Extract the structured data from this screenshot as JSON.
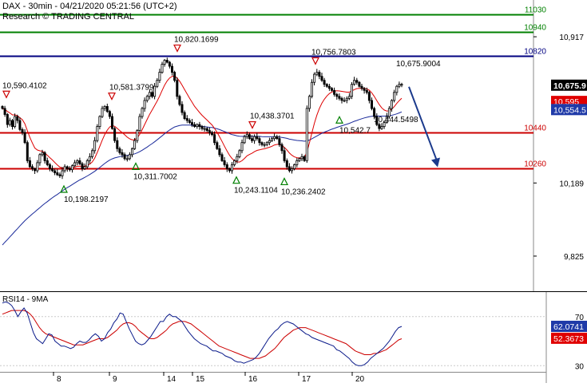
{
  "header": {
    "line1": "DAX - 30min - 04/21/2020 05:21:56 (UTC+2)",
    "line2": "Research © TRADING CENTRAL"
  },
  "colors": {
    "candle": "#000000",
    "ma_fast": "#dd0000",
    "ma_slow": "#1a2a9a",
    "resistance": "#008000",
    "pivot": "#cc0000",
    "blue_level": "#000080",
    "arrow": "#1b3a8c",
    "marker_up": "#008000",
    "marker_down": "#cc0000",
    "rsi": "#0a1a8a",
    "rsi_ma": "#cc0000"
  },
  "chart_data": [
    {
      "type": "candlestick",
      "title": "DAX - 30min - 04/21/2020 05:21:56 (UTC+2)",
      "x_labels": [
        "8",
        "9",
        "14",
        "15",
        "16",
        "17",
        "20"
      ],
      "y_ticks": [
        "10,917",
        "10,189",
        "9,825"
      ],
      "ylim": [
        9650,
        11100
      ],
      "price_badges": [
        {
          "text": "10,675.9",
          "value": 10675.9,
          "style": "last"
        },
        {
          "text": "10,595",
          "value": 10595,
          "style": "red"
        },
        {
          "text": "10,554.5",
          "value": 10554.5,
          "style": "blue"
        }
      ],
      "levels": [
        {
          "label": "11030",
          "value": 11030,
          "color": "#008000"
        },
        {
          "label": "10940",
          "value": 10940,
          "color": "#008000"
        },
        {
          "label": "10820",
          "value": 10820,
          "color": "#000080"
        },
        {
          "label": "10440",
          "value": 10440,
          "color": "#cc0000"
        },
        {
          "label": "10260",
          "value": 10260,
          "color": "#cc0000"
        }
      ],
      "annotations": [
        {
          "text": "10,590.4102",
          "value": 10590.4102,
          "marker": "down"
        },
        {
          "text": "10,198.2197",
          "value": 10198.2197,
          "marker": "up"
        },
        {
          "text": "10,581.3799",
          "value": 10581.3799,
          "marker": "down"
        },
        {
          "text": "10,311.7002",
          "value": 10311.7002,
          "marker": "up"
        },
        {
          "text": "10,820.1699",
          "value": 10820.1699,
          "marker": "down"
        },
        {
          "text": "10,243.1104",
          "value": 10243.1104,
          "marker": "up"
        },
        {
          "text": "10,438.3701",
          "value": 10438.3701,
          "marker": "down"
        },
        {
          "text": "10,236.2402",
          "value": 10236.2402,
          "marker": "up"
        },
        {
          "text": "10,756.7803",
          "value": 10756.7803,
          "marker": "down"
        },
        {
          "text": "10,542.7",
          "value": 10542.7,
          "marker": "up"
        },
        {
          "text": "10,675.9004",
          "value": 10675.9004,
          "marker": "none"
        },
        {
          "text": "10,444.5498",
          "value": 10444.5498,
          "marker": "none"
        }
      ],
      "forecast": {
        "from": 10675.9,
        "to": 10260
      },
      "closes": [
        10560,
        10530,
        10480,
        10500,
        10470,
        10520,
        10500,
        10455,
        10440,
        10390,
        10300,
        10270,
        10260,
        10250,
        10290,
        10330,
        10340,
        10300,
        10280,
        10260,
        10250,
        10240,
        10230,
        10225,
        10250,
        10270,
        10260,
        10255,
        10275,
        10290,
        10300,
        10285,
        10260,
        10270,
        10300,
        10320,
        10350,
        10400,
        10470,
        10520,
        10560,
        10570,
        10545,
        10520,
        10460,
        10400,
        10360,
        10340,
        10330,
        10310,
        10310,
        10330,
        10360,
        10400,
        10450,
        10520,
        10560,
        10600,
        10620,
        10640,
        10620,
        10670,
        10700,
        10740,
        10780,
        10800,
        10790,
        10770,
        10740,
        10700,
        10620,
        10580,
        10540,
        10510,
        10500,
        10490,
        10480,
        10470,
        10480,
        10470,
        10460,
        10460,
        10450,
        10440,
        10430,
        10390,
        10360,
        10330,
        10300,
        10280,
        10260,
        10250,
        10280,
        10300,
        10320,
        10350,
        10390,
        10420,
        10430,
        10410,
        10400,
        10420,
        10410,
        10390,
        10380,
        10380,
        10390,
        10400,
        10410,
        10420,
        10410,
        10380,
        10350,
        10300,
        10270,
        10250,
        10260,
        10280,
        10300,
        10310,
        10320,
        10300,
        10560,
        10620,
        10690,
        10730,
        10740,
        10720,
        10700,
        10680,
        10670,
        10660,
        10650,
        10630,
        10620,
        10610,
        10600,
        10600,
        10610,
        10620,
        10680,
        10700,
        10690,
        10670,
        10660,
        10650,
        10640,
        10600,
        10560,
        10520,
        10480,
        10460,
        10470,
        10490,
        10520,
        10560,
        10600,
        10640,
        10670,
        10680,
        10680
      ],
      "ma_fast": [
        10560,
        10555,
        10545,
        10538,
        10528,
        10528,
        10524,
        10514,
        10504,
        10484,
        10449,
        10416,
        10388,
        10363,
        10353,
        10349,
        10347,
        10338,
        10327,
        10315,
        10304,
        10291,
        10279,
        10268,
        10265,
        10264,
        10264,
        10263,
        10265,
        10268,
        10272,
        10273,
        10272,
        10272,
        10277,
        10283,
        10294,
        10313,
        10341,
        10371,
        10402,
        10430,
        10452,
        10468,
        10475,
        10471,
        10461,
        10450,
        10440,
        10429,
        10417,
        10409,
        10404,
        10404,
        10413,
        10431,
        10454,
        10480,
        10506,
        10531,
        10552,
        10574,
        10597,
        10622,
        10650,
        10676,
        10697,
        10712,
        10720,
        10722,
        10711,
        10696,
        10676,
        10654,
        10632,
        10611,
        10591,
        10571,
        10555,
        10540,
        10526,
        10514,
        10502,
        10490,
        10478,
        10461,
        10441,
        10419,
        10396,
        10372,
        10348,
        10327,
        10311,
        10300,
        10294,
        10293,
        10300,
        10311,
        10324,
        10331,
        10337,
        10345,
        10351,
        10354,
        10357,
        10359,
        10363,
        10367,
        10372,
        10378,
        10381,
        10381,
        10376,
        10366,
        10353,
        10338,
        10327,
        10319,
        10315,
        10313,
        10313,
        10311,
        10345,
        10388,
        10438,
        10486,
        10527,
        10560,
        10586,
        10606,
        10622,
        10634,
        10642,
        10646,
        10648,
        10647,
        10645,
        10643,
        10641,
        10641,
        10647,
        10654,
        10659,
        10660,
        10660,
        10660,
        10658,
        10651,
        10638,
        10620,
        10599,
        10579,
        10563,
        10552,
        10547,
        10549,
        10556,
        10569,
        10585,
        10599,
        10611
      ],
      "ma_slow": [
        9880,
        9894,
        9907,
        9921,
        9934,
        9948,
        9961,
        9975,
        9988,
        10001,
        10013,
        10024,
        10035,
        10045,
        10056,
        10066,
        10077,
        10087,
        10096,
        10106,
        10115,
        10124,
        10132,
        10141,
        10149,
        10158,
        10166,
        10173,
        10181,
        10189,
        10197,
        10204,
        10210,
        10217,
        10224,
        10231,
        10239,
        10247,
        10257,
        10266,
        10276,
        10286,
        10295,
        10303,
        10309,
        10314,
        10317,
        10320,
        10323,
        10325,
        10326,
        10328,
        10331,
        10334,
        10339,
        10345,
        10352,
        10360,
        10368,
        10377,
        10385,
        10394,
        10404,
        10414,
        10424,
        10434,
        10444,
        10453,
        10461,
        10468,
        10472,
        10475,
        10477,
        10477,
        10477,
        10477,
        10476,
        10474,
        10473,
        10472,
        10471,
        10469,
        10468,
        10466,
        10465,
        10462,
        10459,
        10455,
        10450,
        10445,
        10440,
        10434,
        10430,
        10427,
        10424,
        10422,
        10421,
        10421,
        10421,
        10421,
        10421,
        10421,
        10421,
        10421,
        10420,
        10419,
        10419,
        10419,
        10419,
        10419,
        10419,
        10418,
        10416,
        10414,
        10411,
        10407,
        10405,
        10403,
        10401,
        10400,
        10399,
        10397,
        10399,
        10403,
        10409,
        10416,
        10423,
        10430,
        10436,
        10442,
        10447,
        10452,
        10457,
        10461,
        10466,
        10470,
        10474,
        10478,
        10482,
        10486,
        10491,
        10496,
        10500,
        10505,
        10509,
        10513,
        10516,
        10519,
        10521,
        10522,
        10523,
        10522,
        10522,
        10522,
        10523,
        10524,
        10526,
        10529,
        10533,
        10538,
        10543
      ]
    },
    {
      "type": "line",
      "title": "RSI14 - 9MA",
      "y_ticks": [
        "70",
        "30"
      ],
      "ylim": [
        25,
        90
      ],
      "badges": [
        {
          "text": "62.0741",
          "value": 62.0741,
          "style": "blue"
        },
        {
          "text": "52.3673",
          "value": 52.3673,
          "style": "red"
        }
      ],
      "series": [
        {
          "role": "rsi",
          "values": [
            81,
            82,
            81,
            79,
            75,
            70,
            74,
            77,
            73,
            65,
            57,
            52,
            50,
            48,
            52,
            56,
            55,
            50,
            48,
            46,
            46,
            45,
            44,
            45,
            48,
            50,
            49,
            49,
            51,
            54,
            56,
            54,
            50,
            52,
            57,
            60,
            65,
            68,
            73,
            72,
            66,
            60,
            55,
            50,
            48,
            47,
            48,
            51,
            54,
            58,
            62,
            66,
            66,
            70,
            72,
            70,
            70,
            68,
            66,
            62,
            58,
            55,
            52,
            50,
            48,
            47,
            46,
            44,
            42,
            42,
            41,
            40,
            38,
            37,
            36,
            34,
            33,
            33,
            32,
            33,
            34,
            35,
            37,
            40,
            44,
            48,
            52,
            55,
            58,
            60,
            63,
            65,
            66,
            65,
            64,
            62,
            60,
            58,
            56,
            55,
            53,
            52,
            51,
            50,
            49,
            48,
            47,
            46,
            43,
            42,
            40,
            38,
            36,
            33,
            31,
            30,
            30,
            31,
            33,
            36,
            38,
            40,
            42,
            44,
            47,
            50,
            54,
            58,
            61,
            62
          ]
        },
        {
          "role": "ma",
          "values": [
            72,
            73,
            74,
            75,
            75,
            75,
            75,
            75,
            74,
            72,
            69,
            65,
            61,
            58,
            56,
            55,
            54,
            53,
            52,
            51,
            50,
            49,
            48,
            47,
            47,
            47,
            47,
            48,
            49,
            50,
            51,
            52,
            52,
            52,
            53,
            55,
            57,
            59,
            62,
            64,
            65,
            65,
            64,
            62,
            59,
            57,
            55,
            53,
            52,
            52,
            53,
            55,
            57,
            59,
            62,
            64,
            65,
            66,
            66,
            66,
            65,
            64,
            62,
            60,
            58,
            56,
            54,
            52,
            50,
            48,
            46,
            45,
            44,
            43,
            42,
            41,
            40,
            39,
            38,
            37,
            36,
            36,
            36,
            36,
            37,
            38,
            40,
            42,
            44,
            47,
            50,
            53,
            55,
            57,
            59,
            60,
            61,
            61,
            61,
            60,
            59,
            58,
            57,
            56,
            55,
            54,
            53,
            52,
            51,
            50,
            49,
            48,
            46,
            44,
            42,
            41,
            40,
            39,
            39,
            39,
            40,
            40,
            41,
            42,
            43,
            45,
            47,
            49,
            51,
            52
          ]
        }
      ]
    }
  ]
}
